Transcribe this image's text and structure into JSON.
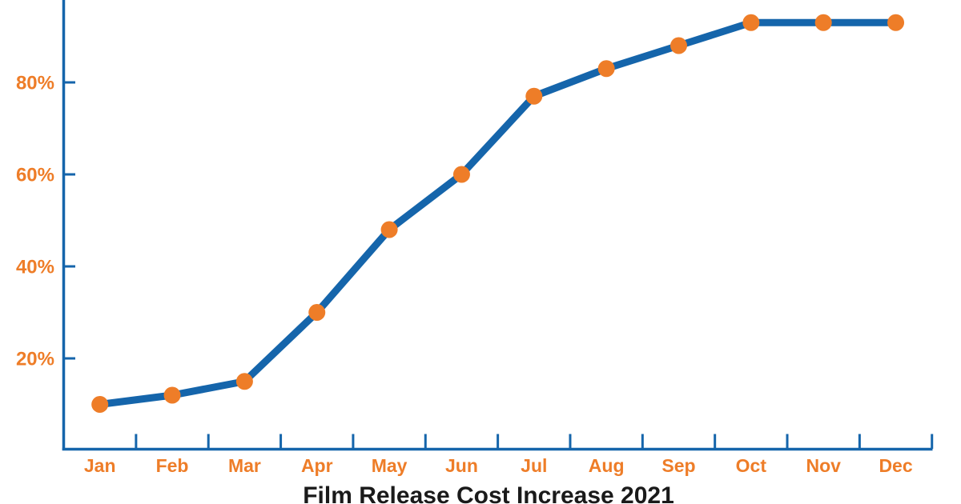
{
  "chart_data": {
    "type": "line",
    "title": "Film Release Cost Increase 2021",
    "xlabel": "",
    "ylabel": "",
    "categories": [
      "Jan",
      "Feb",
      "Mar",
      "Apr",
      "May",
      "Jun",
      "Jul",
      "Aug",
      "Sep",
      "Oct",
      "Nov",
      "Dec"
    ],
    "values": [
      10,
      12,
      15,
      30,
      48,
      60,
      77,
      83,
      88,
      93,
      93,
      93
    ],
    "y_ticks": [
      {
        "value": 20,
        "label": "20%"
      },
      {
        "value": 40,
        "label": "40%"
      },
      {
        "value": 60,
        "label": "60%"
      },
      {
        "value": 80,
        "label": "80%"
      }
    ],
    "ylim": [
      0,
      98
    ],
    "grid": false,
    "legend": false,
    "layout_hints": {
      "x_tick_position": "between-categories",
      "top_edge_cropped": true,
      "title_bottom_cropped": true
    }
  },
  "colors": {
    "line_blue": "#1565ab",
    "axis_blue": "#1565ab",
    "marker_orange": "#ee7d28",
    "label_orange": "#ee7d28",
    "title_black": "#1a1a1a",
    "background": "#ffffff"
  }
}
